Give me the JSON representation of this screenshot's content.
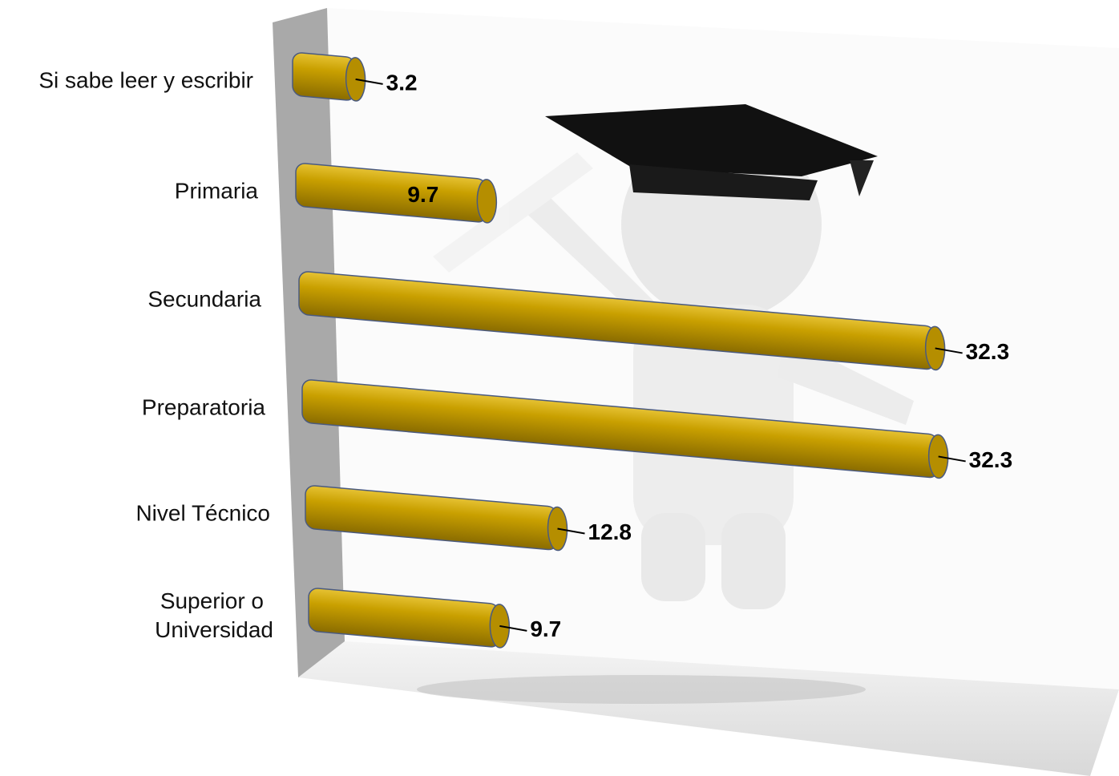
{
  "chart_data": {
    "type": "bar",
    "orientation": "horizontal",
    "categories": [
      "Si sabe leer y escribir",
      "Primaria",
      "Secundaria",
      "Preparatoria",
      "Nivel Técnico",
      "Superior o Universidad"
    ],
    "values": [
      3.2,
      9.7,
      32.3,
      32.3,
      12.8,
      9.7
    ],
    "color": "#c49a00",
    "xlim": [
      0,
      35
    ]
  }
}
